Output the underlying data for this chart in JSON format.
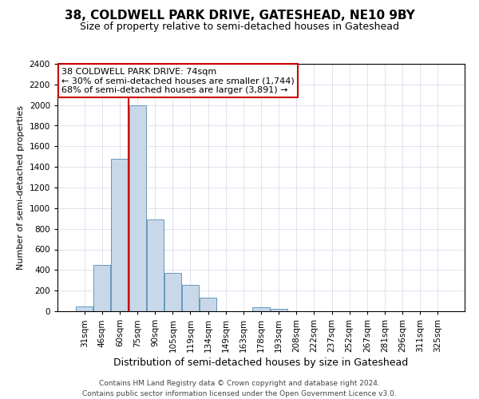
{
  "title1": "38, COLDWELL PARK DRIVE, GATESHEAD, NE10 9BY",
  "title2": "Size of property relative to semi-detached houses in Gateshead",
  "xlabel": "Distribution of semi-detached houses by size in Gateshead",
  "ylabel": "Number of semi-detached properties",
  "categories": [
    "31sqm",
    "46sqm",
    "60sqm",
    "75sqm",
    "90sqm",
    "105sqm",
    "119sqm",
    "134sqm",
    "149sqm",
    "163sqm",
    "178sqm",
    "193sqm",
    "208sqm",
    "222sqm",
    "237sqm",
    "252sqm",
    "267sqm",
    "281sqm",
    "296sqm",
    "311sqm",
    "325sqm"
  ],
  "values": [
    45,
    450,
    1480,
    2000,
    890,
    375,
    255,
    130,
    0,
    0,
    35,
    25,
    0,
    0,
    0,
    0,
    0,
    0,
    0,
    0,
    0
  ],
  "bar_color": "#c8d8e8",
  "bar_edge_color": "#6699bb",
  "vline_color": "#cc0000",
  "vline_pos": 2.5,
  "annotation_title": "38 COLDWELL PARK DRIVE: 74sqm",
  "annotation_line1": "← 30% of semi-detached houses are smaller (1,744)",
  "annotation_line2": "68% of semi-detached houses are larger (3,891) →",
  "annotation_box_color": "#ffffff",
  "annotation_box_edge": "#cc0000",
  "ylim": [
    0,
    2400
  ],
  "yticks": [
    0,
    200,
    400,
    600,
    800,
    1000,
    1200,
    1400,
    1600,
    1800,
    2000,
    2200,
    2400
  ],
  "footer1": "Contains HM Land Registry data © Crown copyright and database right 2024.",
  "footer2": "Contains public sector information licensed under the Open Government Licence v3.0.",
  "bg_color": "#ffffff",
  "grid_color": "#ddddee",
  "title1_fontsize": 11,
  "title2_fontsize": 9,
  "xlabel_fontsize": 9,
  "ylabel_fontsize": 8,
  "tick_fontsize": 7.5,
  "annotation_fontsize": 8,
  "footer_fontsize": 6.5
}
